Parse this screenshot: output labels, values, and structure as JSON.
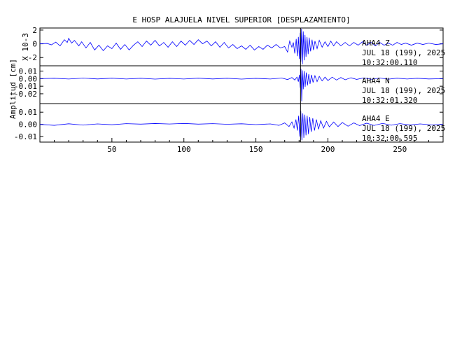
{
  "chart_data": {
    "type": "line",
    "title": "E HOSP ALAJUELA NIVEL SUPERIOR [DESPLAZAMIENTO]",
    "ylabel": "Amplitud [cm]",
    "xlim": [
      0,
      280
    ],
    "x_ticks": [
      50,
      100,
      150,
      200,
      250
    ],
    "x_tick_labels": [
      "50",
      "100",
      "150",
      "200",
      "250"
    ],
    "line_color": "#0000ff",
    "panels": [
      {
        "component": "Z",
        "ylim": [
          -3.2,
          2.3
        ],
        "y_ticks": [
          2,
          0,
          -2
        ],
        "y_tick_labels": [
          "2",
          "0",
          "-2"
        ],
        "y_scale_label": "X 10-3",
        "label_station": "AHA4   Z",
        "label_date": "JUL 18 (199), 2025",
        "label_time": "10:32:00.110",
        "arrival_x": 181,
        "series": [
          {
            "x": 0,
            "y": 0.0
          },
          {
            "x": 5,
            "y": 0.05
          },
          {
            "x": 8,
            "y": -0.15
          },
          {
            "x": 11,
            "y": 0.25
          },
          {
            "x": 14,
            "y": -0.3
          },
          {
            "x": 17,
            "y": 0.6
          },
          {
            "x": 19,
            "y": 0.2
          },
          {
            "x": 20,
            "y": 0.8
          },
          {
            "x": 22,
            "y": 0.1
          },
          {
            "x": 24,
            "y": 0.5
          },
          {
            "x": 27,
            "y": -0.3
          },
          {
            "x": 29,
            "y": 0.3
          },
          {
            "x": 32,
            "y": -0.6
          },
          {
            "x": 35,
            "y": 0.2
          },
          {
            "x": 38,
            "y": -0.9
          },
          {
            "x": 41,
            "y": -0.2
          },
          {
            "x": 44,
            "y": -1.0
          },
          {
            "x": 47,
            "y": -0.3
          },
          {
            "x": 50,
            "y": -0.7
          },
          {
            "x": 53,
            "y": 0.1
          },
          {
            "x": 56,
            "y": -0.8
          },
          {
            "x": 59,
            "y": -0.1
          },
          {
            "x": 62,
            "y": -0.9
          },
          {
            "x": 65,
            "y": -0.2
          },
          {
            "x": 68,
            "y": 0.3
          },
          {
            "x": 71,
            "y": -0.4
          },
          {
            "x": 74,
            "y": 0.4
          },
          {
            "x": 77,
            "y": -0.2
          },
          {
            "x": 80,
            "y": 0.5
          },
          {
            "x": 83,
            "y": -0.3
          },
          {
            "x": 86,
            "y": 0.2
          },
          {
            "x": 89,
            "y": -0.5
          },
          {
            "x": 92,
            "y": 0.3
          },
          {
            "x": 95,
            "y": -0.4
          },
          {
            "x": 98,
            "y": 0.4
          },
          {
            "x": 101,
            "y": -0.2
          },
          {
            "x": 104,
            "y": 0.5
          },
          {
            "x": 107,
            "y": -0.1
          },
          {
            "x": 110,
            "y": 0.6
          },
          {
            "x": 113,
            "y": 0.0
          },
          {
            "x": 116,
            "y": 0.4
          },
          {
            "x": 119,
            "y": -0.3
          },
          {
            "x": 122,
            "y": 0.3
          },
          {
            "x": 125,
            "y": -0.5
          },
          {
            "x": 128,
            "y": 0.2
          },
          {
            "x": 131,
            "y": -0.6
          },
          {
            "x": 134,
            "y": -0.1
          },
          {
            "x": 137,
            "y": -0.7
          },
          {
            "x": 140,
            "y": -0.3
          },
          {
            "x": 143,
            "y": -0.8
          },
          {
            "x": 146,
            "y": -0.2
          },
          {
            "x": 149,
            "y": -0.9
          },
          {
            "x": 152,
            "y": -0.4
          },
          {
            "x": 155,
            "y": -0.8
          },
          {
            "x": 158,
            "y": -0.2
          },
          {
            "x": 161,
            "y": -0.6
          },
          {
            "x": 164,
            "y": -0.1
          },
          {
            "x": 167,
            "y": -0.6
          },
          {
            "x": 170,
            "y": -0.4
          },
          {
            "x": 172,
            "y": -1.2
          },
          {
            "x": 173.5,
            "y": 0.4
          },
          {
            "x": 175,
            "y": -0.5
          },
          {
            "x": 176,
            "y": 0.2
          },
          {
            "x": 177,
            "y": -1.4
          },
          {
            "x": 178,
            "y": 0.7
          },
          {
            "x": 178.8,
            "y": -1.8
          },
          {
            "x": 179.5,
            "y": 1.0
          },
          {
            "x": 180.2,
            "y": -2.2
          },
          {
            "x": 180.8,
            "y": 1.6
          },
          {
            "x": 181.2,
            "y": -2.6
          },
          {
            "x": 181.7,
            "y": 2.2
          },
          {
            "x": 182.3,
            "y": -3.0
          },
          {
            "x": 182.9,
            "y": 1.8
          },
          {
            "x": 183.5,
            "y": -2.4
          },
          {
            "x": 184.1,
            "y": 1.3
          },
          {
            "x": 184.8,
            "y": -1.9
          },
          {
            "x": 185.5,
            "y": 1.0
          },
          {
            "x": 186.3,
            "y": -1.5
          },
          {
            "x": 187,
            "y": 0.9
          },
          {
            "x": 188,
            "y": -1.1
          },
          {
            "x": 189,
            "y": 0.6
          },
          {
            "x": 190,
            "y": -0.9
          },
          {
            "x": 191,
            "y": 0.4
          },
          {
            "x": 192.5,
            "y": -0.7
          },
          {
            "x": 194,
            "y": 0.5
          },
          {
            "x": 196,
            "y": -0.5
          },
          {
            "x": 198,
            "y": 0.3
          },
          {
            "x": 200,
            "y": -0.4
          },
          {
            "x": 202,
            "y": 0.4
          },
          {
            "x": 204,
            "y": -0.3
          },
          {
            "x": 206,
            "y": 0.3
          },
          {
            "x": 209,
            "y": -0.3
          },
          {
            "x": 212,
            "y": 0.2
          },
          {
            "x": 215,
            "y": -0.3
          },
          {
            "x": 218,
            "y": 0.2
          },
          {
            "x": 221,
            "y": -0.2
          },
          {
            "x": 224,
            "y": 0.3
          },
          {
            "x": 227,
            "y": -0.2
          },
          {
            "x": 230,
            "y": 0.2
          },
          {
            "x": 233,
            "y": -0.3
          },
          {
            "x": 236,
            "y": 0.2
          },
          {
            "x": 239,
            "y": -0.2
          },
          {
            "x": 242,
            "y": 0.1
          },
          {
            "x": 245,
            "y": -0.2
          },
          {
            "x": 248,
            "y": 0.2
          },
          {
            "x": 251,
            "y": -0.1
          },
          {
            "x": 254,
            "y": 0.1
          },
          {
            "x": 258,
            "y": -0.2
          },
          {
            "x": 262,
            "y": 0.1
          },
          {
            "x": 266,
            "y": -0.1
          },
          {
            "x": 270,
            "y": 0.1
          },
          {
            "x": 275,
            "y": -0.1
          },
          {
            "x": 280,
            "y": 0.0
          }
        ]
      },
      {
        "component": "N",
        "ylim": [
          -0.033,
          0.017
        ],
        "y_ticks": [
          0.01,
          0.0,
          -0.01,
          -0.02
        ],
        "y_tick_labels": [
          "0.01",
          "0.00",
          "-0.01",
          "-0.02"
        ],
        "y_scale_label": "",
        "label_station": "AHA4   N",
        "label_date": "JUL 18 (199), 2025",
        "label_time": "10:32:01.320",
        "arrival_x": 181,
        "series": [
          {
            "x": 0,
            "y": 0.0
          },
          {
            "x": 10,
            "y": 0.0005
          },
          {
            "x": 20,
            "y": -0.0005
          },
          {
            "x": 30,
            "y": 0.0007
          },
          {
            "x": 40,
            "y": -0.0004
          },
          {
            "x": 50,
            "y": 0.0006
          },
          {
            "x": 60,
            "y": -0.0005
          },
          {
            "x": 70,
            "y": 0.0005
          },
          {
            "x": 80,
            "y": -0.0006
          },
          {
            "x": 90,
            "y": 0.0004
          },
          {
            "x": 100,
            "y": -0.0005
          },
          {
            "x": 110,
            "y": 0.0006
          },
          {
            "x": 120,
            "y": -0.0004
          },
          {
            "x": 130,
            "y": 0.0005
          },
          {
            "x": 140,
            "y": -0.0006
          },
          {
            "x": 150,
            "y": 0.0004
          },
          {
            "x": 160,
            "y": -0.0005
          },
          {
            "x": 168,
            "y": 0.0008
          },
          {
            "x": 172,
            "y": -0.0012
          },
          {
            "x": 175,
            "y": 0.0015
          },
          {
            "x": 177,
            "y": -0.0018
          },
          {
            "x": 178.5,
            "y": 0.002
          },
          {
            "x": 179.5,
            "y": -0.004
          },
          {
            "x": 180.2,
            "y": 0.005
          },
          {
            "x": 180.8,
            "y": -0.012
          },
          {
            "x": 181.3,
            "y": 0.013
          },
          {
            "x": 181.8,
            "y": -0.03
          },
          {
            "x": 182.3,
            "y": 0.011
          },
          {
            "x": 182.9,
            "y": -0.014
          },
          {
            "x": 183.5,
            "y": 0.01
          },
          {
            "x": 184.2,
            "y": -0.011
          },
          {
            "x": 185,
            "y": 0.008
          },
          {
            "x": 185.8,
            "y": -0.009
          },
          {
            "x": 186.7,
            "y": 0.006
          },
          {
            "x": 187.6,
            "y": -0.007
          },
          {
            "x": 188.6,
            "y": 0.005
          },
          {
            "x": 189.7,
            "y": -0.005
          },
          {
            "x": 191,
            "y": 0.004
          },
          {
            "x": 192.5,
            "y": -0.004
          },
          {
            "x": 194,
            "y": 0.003
          },
          {
            "x": 196,
            "y": -0.003
          },
          {
            "x": 198,
            "y": 0.002
          },
          {
            "x": 200,
            "y": -0.0025
          },
          {
            "x": 203,
            "y": 0.002
          },
          {
            "x": 206,
            "y": -0.0018
          },
          {
            "x": 209,
            "y": 0.0015
          },
          {
            "x": 212,
            "y": -0.0015
          },
          {
            "x": 216,
            "y": 0.0012
          },
          {
            "x": 220,
            "y": -0.001
          },
          {
            "x": 225,
            "y": 0.001
          },
          {
            "x": 230,
            "y": -0.0008
          },
          {
            "x": 236,
            "y": 0.0008
          },
          {
            "x": 242,
            "y": -0.0007
          },
          {
            "x": 248,
            "y": 0.0006
          },
          {
            "x": 255,
            "y": -0.0005
          },
          {
            "x": 262,
            "y": 0.0005
          },
          {
            "x": 270,
            "y": -0.0004
          },
          {
            "x": 280,
            "y": 0.0
          }
        ]
      },
      {
        "component": "E",
        "ylim": [
          -0.0145,
          0.017
        ],
        "y_ticks": [
          0.01,
          0.0,
          -0.01
        ],
        "y_tick_labels": [
          "0.01",
          "0.00",
          "-0.01"
        ],
        "y_scale_label": "",
        "label_station": "AHA4   E",
        "label_date": "JUL 18 (199), 2025",
        "label_time": "10:32:00.595",
        "arrival_x": 181,
        "series": [
          {
            "x": 0,
            "y": 0.0
          },
          {
            "x": 10,
            "y": -0.0008
          },
          {
            "x": 20,
            "y": 0.0005
          },
          {
            "x": 30,
            "y": -0.0006
          },
          {
            "x": 40,
            "y": 0.0004
          },
          {
            "x": 50,
            "y": -0.0003
          },
          {
            "x": 60,
            "y": 0.0006
          },
          {
            "x": 70,
            "y": 0.0002
          },
          {
            "x": 80,
            "y": 0.0007
          },
          {
            "x": 90,
            "y": 0.0003
          },
          {
            "x": 100,
            "y": 0.0008
          },
          {
            "x": 110,
            "y": 0.0002
          },
          {
            "x": 120,
            "y": 0.0006
          },
          {
            "x": 130,
            "y": 0.0001
          },
          {
            "x": 140,
            "y": 0.0005
          },
          {
            "x": 150,
            "y": -0.0002
          },
          {
            "x": 160,
            "y": 0.0004
          },
          {
            "x": 166,
            "y": -0.0008
          },
          {
            "x": 170,
            "y": 0.0012
          },
          {
            "x": 173,
            "y": -0.0018
          },
          {
            "x": 175,
            "y": 0.002
          },
          {
            "x": 176.5,
            "y": -0.003
          },
          {
            "x": 177.8,
            "y": 0.004
          },
          {
            "x": 178.8,
            "y": -0.005
          },
          {
            "x": 179.7,
            "y": 0.007
          },
          {
            "x": 180.5,
            "y": -0.01
          },
          {
            "x": 181.2,
            "y": 0.011
          },
          {
            "x": 181.9,
            "y": -0.013
          },
          {
            "x": 182.6,
            "y": 0.009
          },
          {
            "x": 183.3,
            "y": -0.011
          },
          {
            "x": 184,
            "y": 0.008
          },
          {
            "x": 184.8,
            "y": -0.009
          },
          {
            "x": 185.6,
            "y": 0.007
          },
          {
            "x": 186.5,
            "y": -0.008
          },
          {
            "x": 187.4,
            "y": 0.006
          },
          {
            "x": 188.4,
            "y": -0.006
          },
          {
            "x": 189.5,
            "y": 0.005
          },
          {
            "x": 190.7,
            "y": -0.005
          },
          {
            "x": 192,
            "y": 0.004
          },
          {
            "x": 193.5,
            "y": -0.004
          },
          {
            "x": 195,
            "y": 0.003
          },
          {
            "x": 197,
            "y": -0.003
          },
          {
            "x": 199,
            "y": 0.0025
          },
          {
            "x": 201,
            "y": -0.002
          },
          {
            "x": 204,
            "y": 0.002
          },
          {
            "x": 207,
            "y": -0.0018
          },
          {
            "x": 210,
            "y": 0.0015
          },
          {
            "x": 214,
            "y": -0.0015
          },
          {
            "x": 218,
            "y": 0.0012
          },
          {
            "x": 222,
            "y": -0.001
          },
          {
            "x": 227,
            "y": 0.001
          },
          {
            "x": 232,
            "y": -0.0009
          },
          {
            "x": 238,
            "y": 0.0008
          },
          {
            "x": 244,
            "y": -0.0007
          },
          {
            "x": 250,
            "y": 0.0006
          },
          {
            "x": 257,
            "y": -0.0005
          },
          {
            "x": 264,
            "y": 0.0004
          },
          {
            "x": 272,
            "y": -0.0004
          },
          {
            "x": 280,
            "y": 0.0
          }
        ]
      }
    ]
  }
}
